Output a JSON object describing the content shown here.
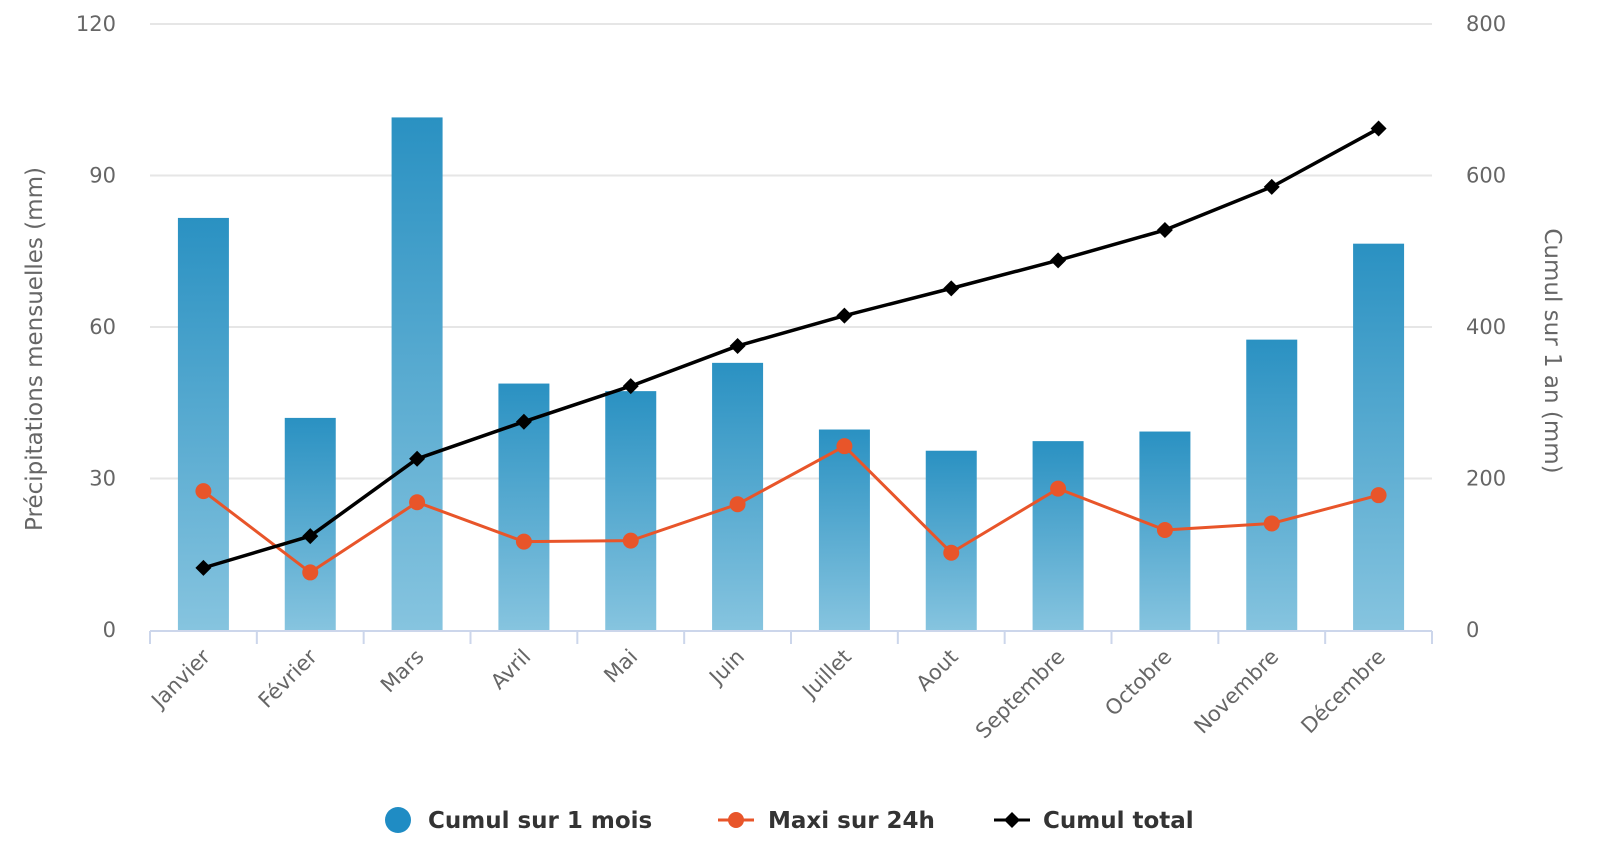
{
  "chart_data": {
    "type": "bar",
    "categories": [
      "Janvier",
      "Février",
      "Mars",
      "Avril",
      "Mai",
      "Juin",
      "Juillet",
      "Aout",
      "Septembre",
      "Octobre",
      "Novembre",
      "Décembre"
    ],
    "y_left": {
      "label": "Précipitations mensuelles (mm)",
      "range": [
        0,
        120
      ],
      "ticks": [
        "0",
        "30",
        "60",
        "90",
        "120"
      ]
    },
    "y_right": {
      "label": "Cumul sur 1 an (mm)",
      "range": [
        0,
        800
      ],
      "ticks": [
        "0",
        "200",
        "400",
        "600",
        "800"
      ]
    },
    "grid": true,
    "legend_position": "bottom-center",
    "series": [
      {
        "name": "Cumul sur 1 mois",
        "type": "bar",
        "axis": "left",
        "color": "#2a94c4",
        "values": [
          81.6,
          42.0,
          101.5,
          48.8,
          47.3,
          52.9,
          39.7,
          35.5,
          37.4,
          39.3,
          57.5,
          76.5
        ]
      },
      {
        "name": "Maxi sur 24h",
        "type": "line",
        "axis": "left",
        "color": "#e8552a",
        "values": [
          27.5,
          11.4,
          25.3,
          17.5,
          17.7,
          24.9,
          36.4,
          15.3,
          28.0,
          19.8,
          21.1,
          26.7
        ]
      },
      {
        "name": "Cumul total",
        "type": "line",
        "axis": "right",
        "color": "#000000",
        "values": [
          82,
          124,
          226,
          275,
          322,
          375,
          415,
          451,
          488,
          528,
          585,
          662
        ]
      }
    ]
  }
}
